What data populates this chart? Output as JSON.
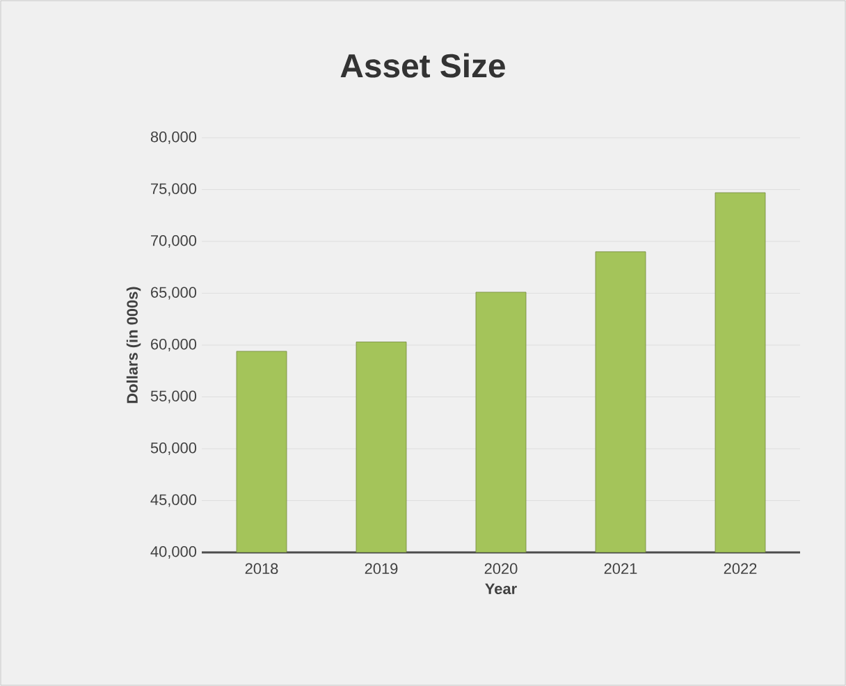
{
  "chart_data": {
    "type": "bar",
    "title": "Asset Size",
    "xlabel": "Year",
    "ylabel": "Dollars (in 000s)",
    "categories": [
      "2018",
      "2019",
      "2020",
      "2021",
      "2022"
    ],
    "values": [
      59400,
      60300,
      65100,
      69000,
      74700
    ],
    "color": "#a4c45a",
    "ylim": [
      40000,
      80000
    ],
    "yticks": [
      {
        "value": 40000,
        "label": "40,000"
      },
      {
        "value": 45000,
        "label": "45,000"
      },
      {
        "value": 50000,
        "label": "50,000"
      },
      {
        "value": 55000,
        "label": "55,000"
      },
      {
        "value": 60000,
        "label": "60,000"
      },
      {
        "value": 65000,
        "label": "65,000"
      },
      {
        "value": 70000,
        "label": "70,000"
      },
      {
        "value": 75000,
        "label": "75,000"
      },
      {
        "value": 80000,
        "label": "80,000"
      }
    ],
    "grid": "y"
  }
}
